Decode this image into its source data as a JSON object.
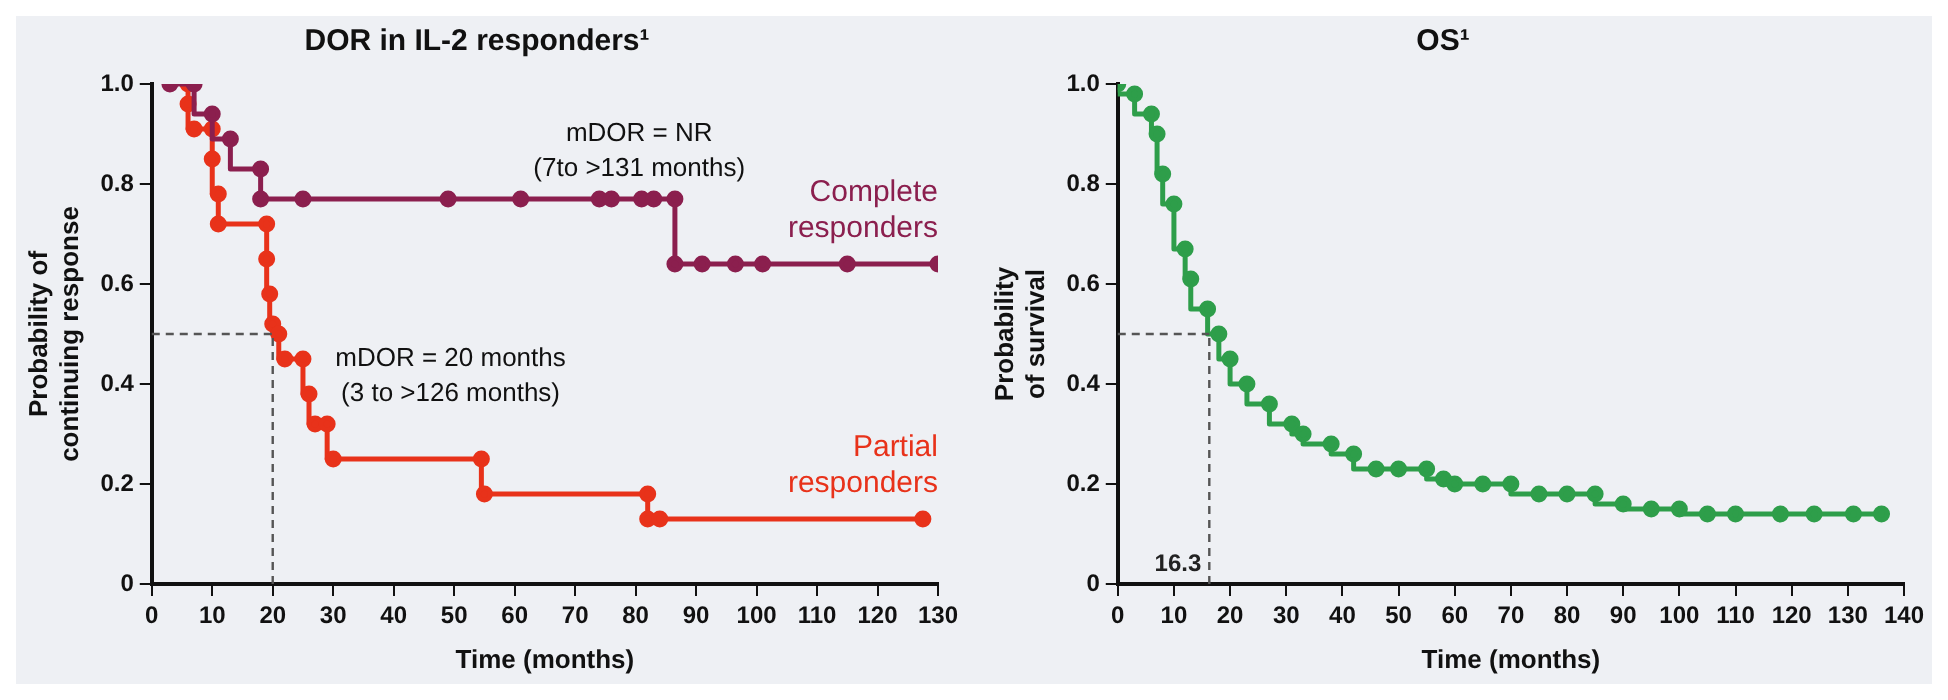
{
  "chart_data": [
    {
      "type": "step",
      "title": "DOR in IL-2 responders¹",
      "xlabel": "Time (months)",
      "ylabel": "Probability of continuing response",
      "xlim": [
        0,
        130
      ],
      "xticks": [
        0,
        10,
        20,
        30,
        40,
        50,
        60,
        70,
        80,
        90,
        100,
        110,
        120,
        130
      ],
      "ylim": [
        0,
        1
      ],
      "yticks": [
        0,
        0.2,
        0.4,
        0.6,
        0.8,
        {
          "value": 1,
          "label": "1.0"
        }
      ],
      "grid": false,
      "legend": false,
      "marker": "circle",
      "line_style": "solid",
      "annotations": [
        "mDOR = NR",
        "(7to >131 months)",
        "mDOR = 20 months",
        "(3 to >126 months)"
      ],
      "ref_lines": [
        {
          "axis": "y",
          "value": 0.5,
          "color": "#555555",
          "line_style": "dashed"
        },
        {
          "axis": "x",
          "value": 20,
          "color": "#555555",
          "line_style": "dashed"
        }
      ],
      "series": [
        {
          "name": "Complete responders",
          "color": "#8b1f4e",
          "x": [
            3,
            7,
            10,
            13,
            18,
            18,
            25,
            49,
            61,
            74,
            76,
            81,
            83,
            86.5,
            86.5,
            91,
            96.5,
            101,
            115,
            130
          ],
          "values": [
            1,
            1,
            0.94,
            0.89,
            0.83,
            0.77,
            0.77,
            0.77,
            0.77,
            0.77,
            0.77,
            0.77,
            0.77,
            0.77,
            0.64,
            0.64,
            0.64,
            0.64,
            0.64,
            0.64
          ]
        },
        {
          "name": "Partial responders",
          "color": "#e8321a",
          "x": [
            6,
            6,
            7,
            10,
            10,
            11,
            11,
            19,
            19,
            19.5,
            20,
            21,
            22,
            25,
            26,
            27,
            29,
            30,
            54.5,
            55,
            82,
            82,
            84,
            127.5
          ],
          "values": [
            1,
            0.96,
            0.91,
            0.91,
            0.85,
            0.78,
            0.72,
            0.72,
            0.65,
            0.58,
            0.52,
            0.5,
            0.45,
            0.45,
            0.38,
            0.32,
            0.32,
            0.25,
            0.25,
            0.18,
            0.18,
            0.13,
            0.13,
            0.13
          ]
        }
      ]
    },
    {
      "type": "step",
      "title": "OS¹",
      "xlabel": "Time (months)",
      "ylabel": "Probability of survival",
      "xlim": [
        0,
        140
      ],
      "xticks": [
        0,
        10,
        20,
        30,
        40,
        50,
        60,
        70,
        80,
        90,
        100,
        110,
        120,
        130,
        140
      ],
      "ylim": [
        0,
        1
      ],
      "yticks": [
        0,
        0.2,
        0.4,
        0.6,
        0.8,
        {
          "value": 1,
          "label": "1.0"
        }
      ],
      "grid": false,
      "legend": false,
      "marker": "circle",
      "line_style": "solid",
      "ref_lines": [
        {
          "axis": "y",
          "value": 0.5,
          "color": "#555555",
          "line_style": "dashed"
        },
        {
          "axis": "x",
          "value": 16.3,
          "label": "16.3",
          "color": "#555555",
          "line_style": "dashed"
        }
      ],
      "series": [
        {
          "color": "#2e9e4a",
          "x": [
            0,
            3,
            6,
            7,
            8,
            10,
            12,
            13,
            16,
            18,
            20,
            23,
            27,
            31,
            33,
            38,
            42,
            46,
            50,
            55,
            58,
            60,
            65,
            70,
            75,
            80,
            85,
            90,
            95,
            100,
            105,
            110,
            118,
            124,
            131,
            136
          ],
          "values": [
            1,
            0.98,
            0.94,
            0.9,
            0.82,
            0.76,
            0.67,
            0.61,
            0.55,
            0.5,
            0.45,
            0.4,
            0.36,
            0.32,
            0.3,
            0.28,
            0.26,
            0.23,
            0.23,
            0.23,
            0.21,
            0.2,
            0.2,
            0.2,
            0.18,
            0.18,
            0.18,
            0.16,
            0.15,
            0.15,
            0.14,
            0.14,
            0.14,
            0.14,
            0.14,
            0.14
          ]
        }
      ]
    }
  ]
}
